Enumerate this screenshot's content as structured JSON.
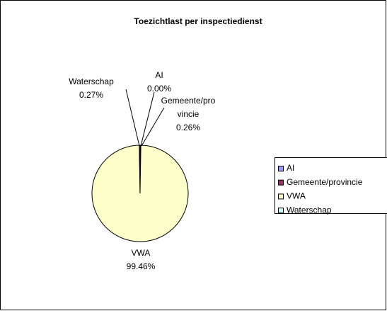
{
  "chart_data": {
    "type": "pie",
    "title": "Toezichtlast per inspectiedienst",
    "categories": [
      "AI",
      "Gemeente/provincie",
      "VWA",
      "Waterschap"
    ],
    "values": [
      0,
      0.26,
      99.46,
      0.27
    ],
    "value_labels": [
      "0.00%",
      "0.26%",
      "99.46%",
      "0.27%"
    ],
    "colors": [
      "#9999FF",
      "#993366",
      "#FFFFCC",
      "#CCFFFF"
    ],
    "legend": "right"
  }
}
